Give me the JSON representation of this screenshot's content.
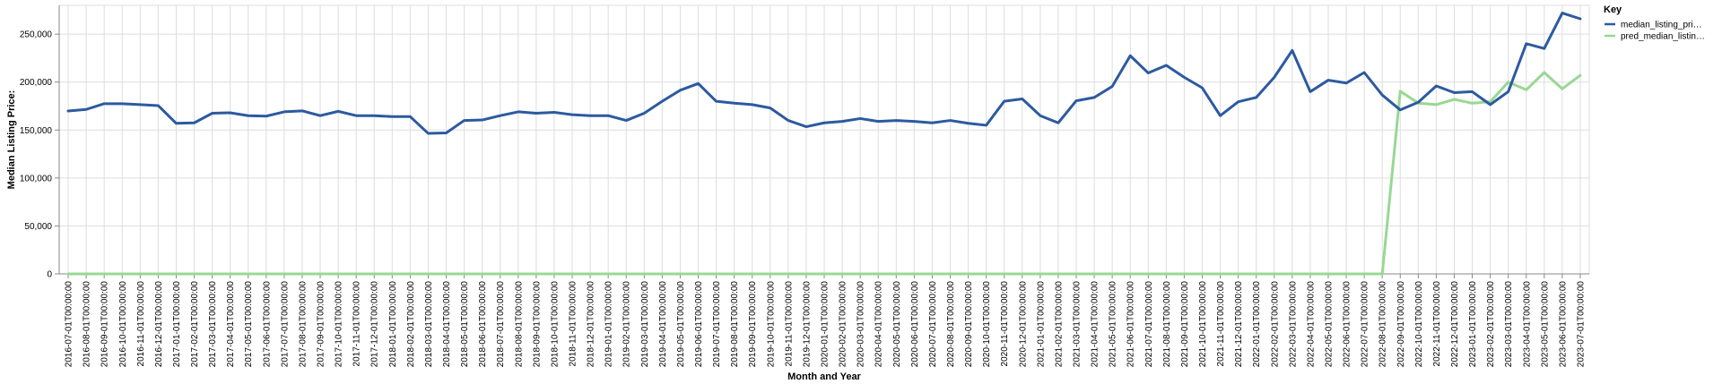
{
  "chart_data": {
    "type": "line",
    "title": "",
    "xlabel": "Month and Year",
    "ylabel": "Median Listing Price:",
    "ylim": [
      0,
      280000
    ],
    "yticks": [
      0,
      50000,
      100000,
      150000,
      200000,
      250000
    ],
    "ytick_labels": [
      "0",
      "50,000",
      "100,000",
      "150,000",
      "200,000",
      "250,000"
    ],
    "grid": true,
    "legend_title": "Key",
    "legend_position": "right",
    "categories": [
      "2016-07-01T00:00:00",
      "2016-08-01T00:00:00",
      "2016-09-01T00:00:00",
      "2016-10-01T00:00:00",
      "2016-11-01T00:00:00",
      "2016-12-01T00:00:00",
      "2017-01-01T00:00:00",
      "2017-02-01T00:00:00",
      "2017-03-01T00:00:00",
      "2017-04-01T00:00:00",
      "2017-05-01T00:00:00",
      "2017-06-01T00:00:00",
      "2017-07-01T00:00:00",
      "2017-08-01T00:00:00",
      "2017-09-01T00:00:00",
      "2017-10-01T00:00:00",
      "2017-11-01T00:00:00",
      "2017-12-01T00:00:00",
      "2018-01-01T00:00:00",
      "2018-02-01T00:00:00",
      "2018-03-01T00:00:00",
      "2018-04-01T00:00:00",
      "2018-05-01T00:00:00",
      "2018-06-01T00:00:00",
      "2018-07-01T00:00:00",
      "2018-08-01T00:00:00",
      "2018-09-01T00:00:00",
      "2018-10-01T00:00:00",
      "2018-11-01T00:00:00",
      "2018-12-01T00:00:00",
      "2019-01-01T00:00:00",
      "2019-02-01T00:00:00",
      "2019-03-01T00:00:00",
      "2019-04-01T00:00:00",
      "2019-05-01T00:00:00",
      "2019-06-01T00:00:00",
      "2019-07-01T00:00:00",
      "2019-08-01T00:00:00",
      "2019-09-01T00:00:00",
      "2019-10-01T00:00:00",
      "2019-11-01T00:00:00",
      "2019-12-01T00:00:00",
      "2020-01-01T00:00:00",
      "2020-02-01T00:00:00",
      "2020-03-01T00:00:00",
      "2020-04-01T00:00:00",
      "2020-05-01T00:00:00",
      "2020-06-01T00:00:00",
      "2020-07-01T00:00:00",
      "2020-08-01T00:00:00",
      "2020-09-01T00:00:00",
      "2020-10-01T00:00:00",
      "2020-11-01T00:00:00",
      "2020-12-01T00:00:00",
      "2021-01-01T00:00:00",
      "2021-02-01T00:00:00",
      "2021-03-01T00:00:00",
      "2021-04-01T00:00:00",
      "2021-05-01T00:00:00",
      "2021-06-01T00:00:00",
      "2021-07-01T00:00:00",
      "2021-08-01T00:00:00",
      "2021-09-01T00:00:00",
      "2021-10-01T00:00:00",
      "2021-11-01T00:00:00",
      "2021-12-01T00:00:00",
      "2022-01-01T00:00:00",
      "2022-02-01T00:00:00",
      "2022-03-01T00:00:00",
      "2022-04-01T00:00:00",
      "2022-05-01T00:00:00",
      "2022-06-01T00:00:00",
      "2022-07-01T00:00:00",
      "2022-08-01T00:00:00",
      "2022-09-01T00:00:00",
      "2022-10-01T00:00:00",
      "2022-11-01T00:00:00",
      "2022-12-01T00:00:00",
      "2023-01-01T00:00:00",
      "2023-02-01T00:00:00",
      "2023-03-01T00:00:00",
      "2023-04-01T00:00:00",
      "2023-05-01T00:00:00",
      "2023-06-01T00:00:00",
      "2023-07-01T00:00:00"
    ],
    "series": [
      {
        "name": "median_listing_pri…",
        "color": "#2c5aa0",
        "values": [
          169900,
          171500,
          177500,
          177500,
          176500,
          175500,
          157000,
          157500,
          167500,
          168000,
          165000,
          164500,
          169000,
          170000,
          165000,
          169500,
          165000,
          165000,
          164000,
          164000,
          146500,
          147000,
          160000,
          160500,
          165000,
          169000,
          167500,
          168500,
          166000,
          165000,
          165000,
          160000,
          167500,
          180000,
          191500,
          198500,
          180000,
          178000,
          176500,
          173000,
          160000,
          153500,
          157500,
          159000,
          162000,
          159000,
          160000,
          159000,
          157500,
          160000,
          157000,
          155000,
          180000,
          182500,
          165000,
          157500,
          180500,
          184000,
          195500,
          227500,
          209500,
          217500,
          205000,
          194000,
          165000,
          179500,
          184000,
          205000,
          233000,
          190000,
          202000,
          199000,
          210000,
          186500,
          171000,
          179000,
          196000,
          189000,
          190000,
          176500,
          190000,
          240000,
          235000,
          272000,
          266000
        ]
      },
      {
        "name": "pred_median_listin…",
        "color": "#98d893",
        "values": [
          0,
          0,
          0,
          0,
          0,
          0,
          0,
          0,
          0,
          0,
          0,
          0,
          0,
          0,
          0,
          0,
          0,
          0,
          0,
          0,
          0,
          0,
          0,
          0,
          0,
          0,
          0,
          0,
          0,
          0,
          0,
          0,
          0,
          0,
          0,
          0,
          0,
          0,
          0,
          0,
          0,
          0,
          0,
          0,
          0,
          0,
          0,
          0,
          0,
          0,
          0,
          0,
          0,
          0,
          0,
          0,
          0,
          0,
          0,
          0,
          0,
          0,
          0,
          0,
          0,
          0,
          0,
          0,
          0,
          0,
          0,
          0,
          0,
          0,
          190500,
          178000,
          176500,
          182000,
          178000,
          179500,
          200000,
          192000,
          210000,
          193000,
          207000
        ]
      }
    ]
  }
}
